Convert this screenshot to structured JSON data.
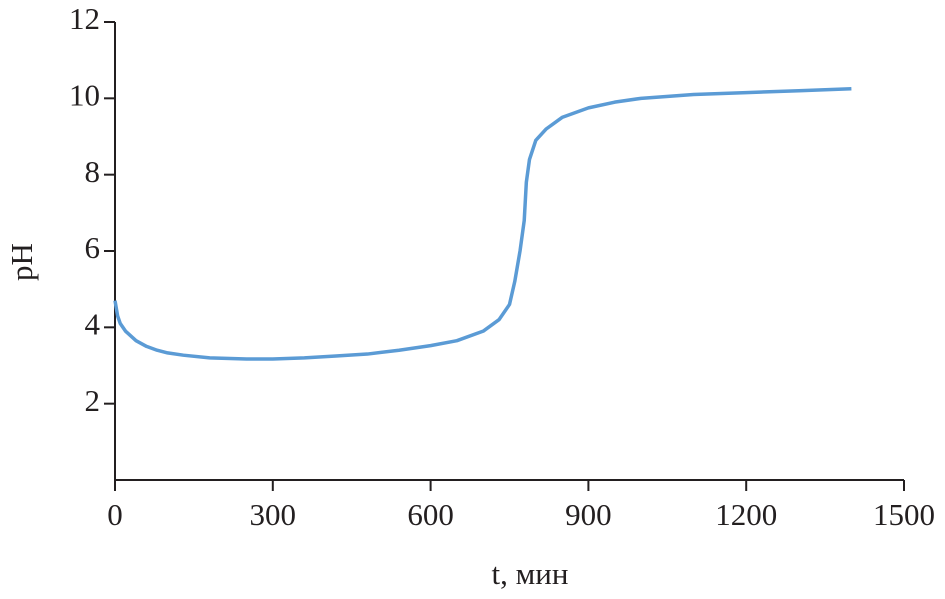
{
  "chart_data": {
    "type": "line",
    "xlabel": "t, мин",
    "ylabel": "pH",
    "x": [
      0,
      5,
      10,
      20,
      40,
      60,
      80,
      100,
      130,
      180,
      250,
      300,
      360,
      420,
      480,
      540,
      600,
      650,
      700,
      730,
      750,
      760,
      770,
      778,
      782,
      788,
      800,
      820,
      850,
      900,
      950,
      1000,
      1100,
      1200,
      1300,
      1400
    ],
    "series": [
      {
        "color": "#5b9bd5",
        "values": [
          4.7,
          4.3,
          4.1,
          3.9,
          3.65,
          3.5,
          3.4,
          3.33,
          3.27,
          3.2,
          3.17,
          3.17,
          3.2,
          3.25,
          3.3,
          3.4,
          3.52,
          3.65,
          3.9,
          4.2,
          4.6,
          5.2,
          6.0,
          6.8,
          7.8,
          8.4,
          8.9,
          9.2,
          9.5,
          9.75,
          9.9,
          10.0,
          10.1,
          10.15,
          10.2,
          10.25
        ]
      }
    ],
    "xlim": [
      0,
      1500
    ],
    "xticks": [
      0,
      300,
      600,
      900,
      1200,
      1500
    ],
    "ylim": [
      0,
      12
    ],
    "yticks": [
      2,
      4,
      6,
      8,
      10,
      12
    ]
  }
}
